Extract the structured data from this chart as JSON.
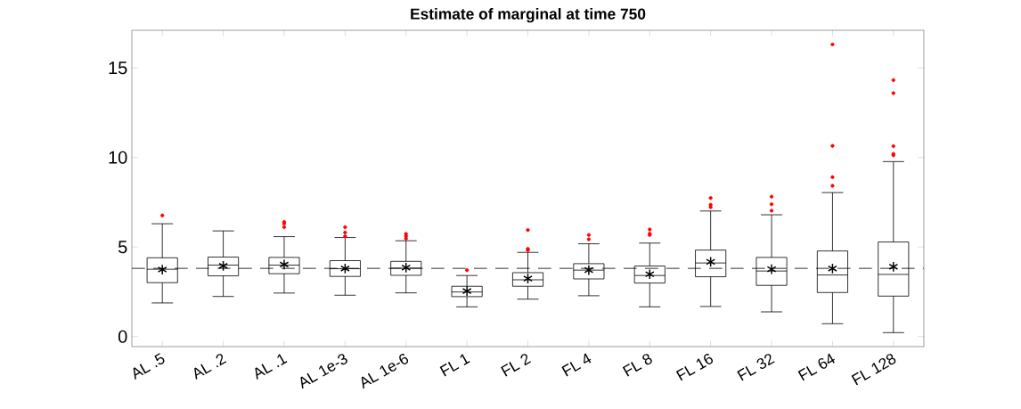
{
  "chart_data": {
    "type": "box",
    "title": "Estimate of marginal at time 750",
    "categories": [
      "AL .5",
      "AL .2",
      "AL .1",
      "AL 1e-3",
      "AL 1e-6",
      "FL 1",
      "FL 2",
      "FL 4",
      "FL 8",
      "FL 16",
      "FL 32",
      "FL 64",
      "FL 128"
    ],
    "color": "#000000",
    "boxes": [
      {
        "low": 1.88,
        "q1": 3.01,
        "median": 3.76,
        "q3": 4.4,
        "high": 6.3,
        "mean": 3.74,
        "outliers": [
          6.76
        ]
      },
      {
        "low": 2.24,
        "q1": 3.39,
        "median": 3.99,
        "q3": 4.44,
        "high": 5.9,
        "mean": 3.95
      },
      {
        "low": 2.43,
        "q1": 3.51,
        "median": 3.99,
        "q3": 4.42,
        "high": 5.58,
        "mean": 4.02,
        "outliers": [
          6.4,
          6.3,
          6.11
        ]
      },
      {
        "low": 2.31,
        "q1": 3.36,
        "median": 3.79,
        "q3": 4.24,
        "high": 5.53,
        "mean": 3.8,
        "outliers": [
          6.11,
          5.81,
          5.6
        ]
      },
      {
        "low": 2.44,
        "q1": 3.42,
        "median": 3.82,
        "q3": 4.2,
        "high": 5.35,
        "mean": 3.85,
        "outliers": [
          5.73,
          5.6,
          5.47
        ]
      },
      {
        "low": 1.66,
        "q1": 2.23,
        "median": 2.49,
        "q3": 2.81,
        "high": 3.41,
        "mean": 2.54,
        "outliers": [
          3.71
        ]
      },
      {
        "low": 2.09,
        "q1": 2.81,
        "median": 3.17,
        "q3": 3.57,
        "high": 4.7,
        "mean": 3.24,
        "outliers": [
          5.95,
          4.9,
          4.82
        ]
      },
      {
        "low": 2.28,
        "q1": 3.22,
        "median": 3.71,
        "q3": 4.07,
        "high": 5.18,
        "mean": 3.71,
        "outliers": [
          5.67,
          5.43
        ]
      },
      {
        "low": 1.66,
        "q1": 2.99,
        "median": 3.41,
        "q3": 3.94,
        "high": 5.22,
        "mean": 3.48,
        "outliers": [
          5.98,
          5.75,
          5.67
        ]
      },
      {
        "low": 1.68,
        "q1": 3.34,
        "median": 4.11,
        "q3": 4.83,
        "high": 7.01,
        "mean": 4.17,
        "outliers": [
          7.74,
          7.36,
          7.22
        ]
      },
      {
        "low": 1.38,
        "q1": 2.86,
        "median": 3.66,
        "q3": 4.42,
        "high": 6.8,
        "mean": 3.76,
        "outliers": [
          7.81,
          7.39,
          7.03
        ]
      },
      {
        "low": 0.72,
        "q1": 2.46,
        "median": 3.44,
        "q3": 4.78,
        "high": 8.04,
        "mean": 3.8,
        "outliers": [
          16.31,
          10.65,
          8.9,
          8.42
        ]
      },
      {
        "low": 0.22,
        "q1": 2.26,
        "median": 3.47,
        "q3": 5.28,
        "high": 9.77,
        "mean": 3.9,
        "outliers": [
          14.32,
          13.59,
          10.63,
          10.2,
          10.12
        ]
      }
    ],
    "ylim": [
      -0.56,
      17.1
    ],
    "yticks": [
      0,
      5,
      10,
      15
    ],
    "ref_lines": [
      {
        "axis": "y",
        "value": 3.81,
        "color": "#000000",
        "line_style": "dashed"
      }
    ]
  }
}
